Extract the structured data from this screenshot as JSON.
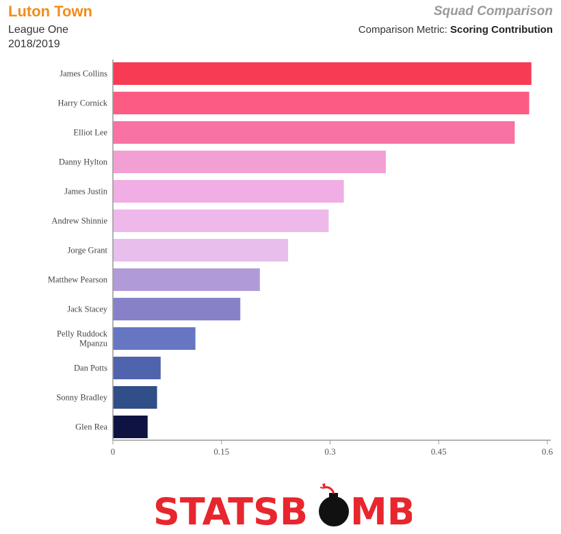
{
  "header": {
    "team": "Luton Town",
    "league": "League One",
    "season": "2018/2019",
    "title": "Squad Comparison",
    "metric_label": "Comparison Metric:",
    "metric_value": "Scoring Contribution"
  },
  "chart_data": {
    "type": "bar",
    "orientation": "horizontal",
    "categories": [
      "James Collins",
      "Harry Cornick",
      "Elliot Lee",
      "Danny Hylton",
      "James Justin",
      "Andrew Shinnie",
      "Jorge Grant",
      "Matthew Pearson",
      "Jack Stacey",
      "Pelly Ruddock Mpanzu",
      "Dan Potts",
      "Sonny Bradley",
      "Glen Rea"
    ],
    "values": [
      0.578,
      0.575,
      0.555,
      0.377,
      0.319,
      0.298,
      0.242,
      0.203,
      0.176,
      0.114,
      0.066,
      0.061,
      0.048
    ],
    "colors": [
      "#f83b55",
      "#fc5c83",
      "#f872a4",
      "#f2a0d4",
      "#f0aee5",
      "#efb8ea",
      "#e8bfec",
      "#b19ad8",
      "#8782c8",
      "#6676c2",
      "#5064ad",
      "#304e87",
      "#0e1342"
    ],
    "xlim": [
      0,
      0.6
    ],
    "xticks": [
      "0",
      "0.15",
      "0.3",
      "0.45",
      "0.6"
    ],
    "xtick_values": [
      0,
      0.15,
      0.3,
      0.45,
      0.6
    ],
    "grid": false
  },
  "logo": {
    "text_left": "STATSB",
    "text_right": "MB",
    "icon": "bomb-icon",
    "color": "#e8262e"
  }
}
